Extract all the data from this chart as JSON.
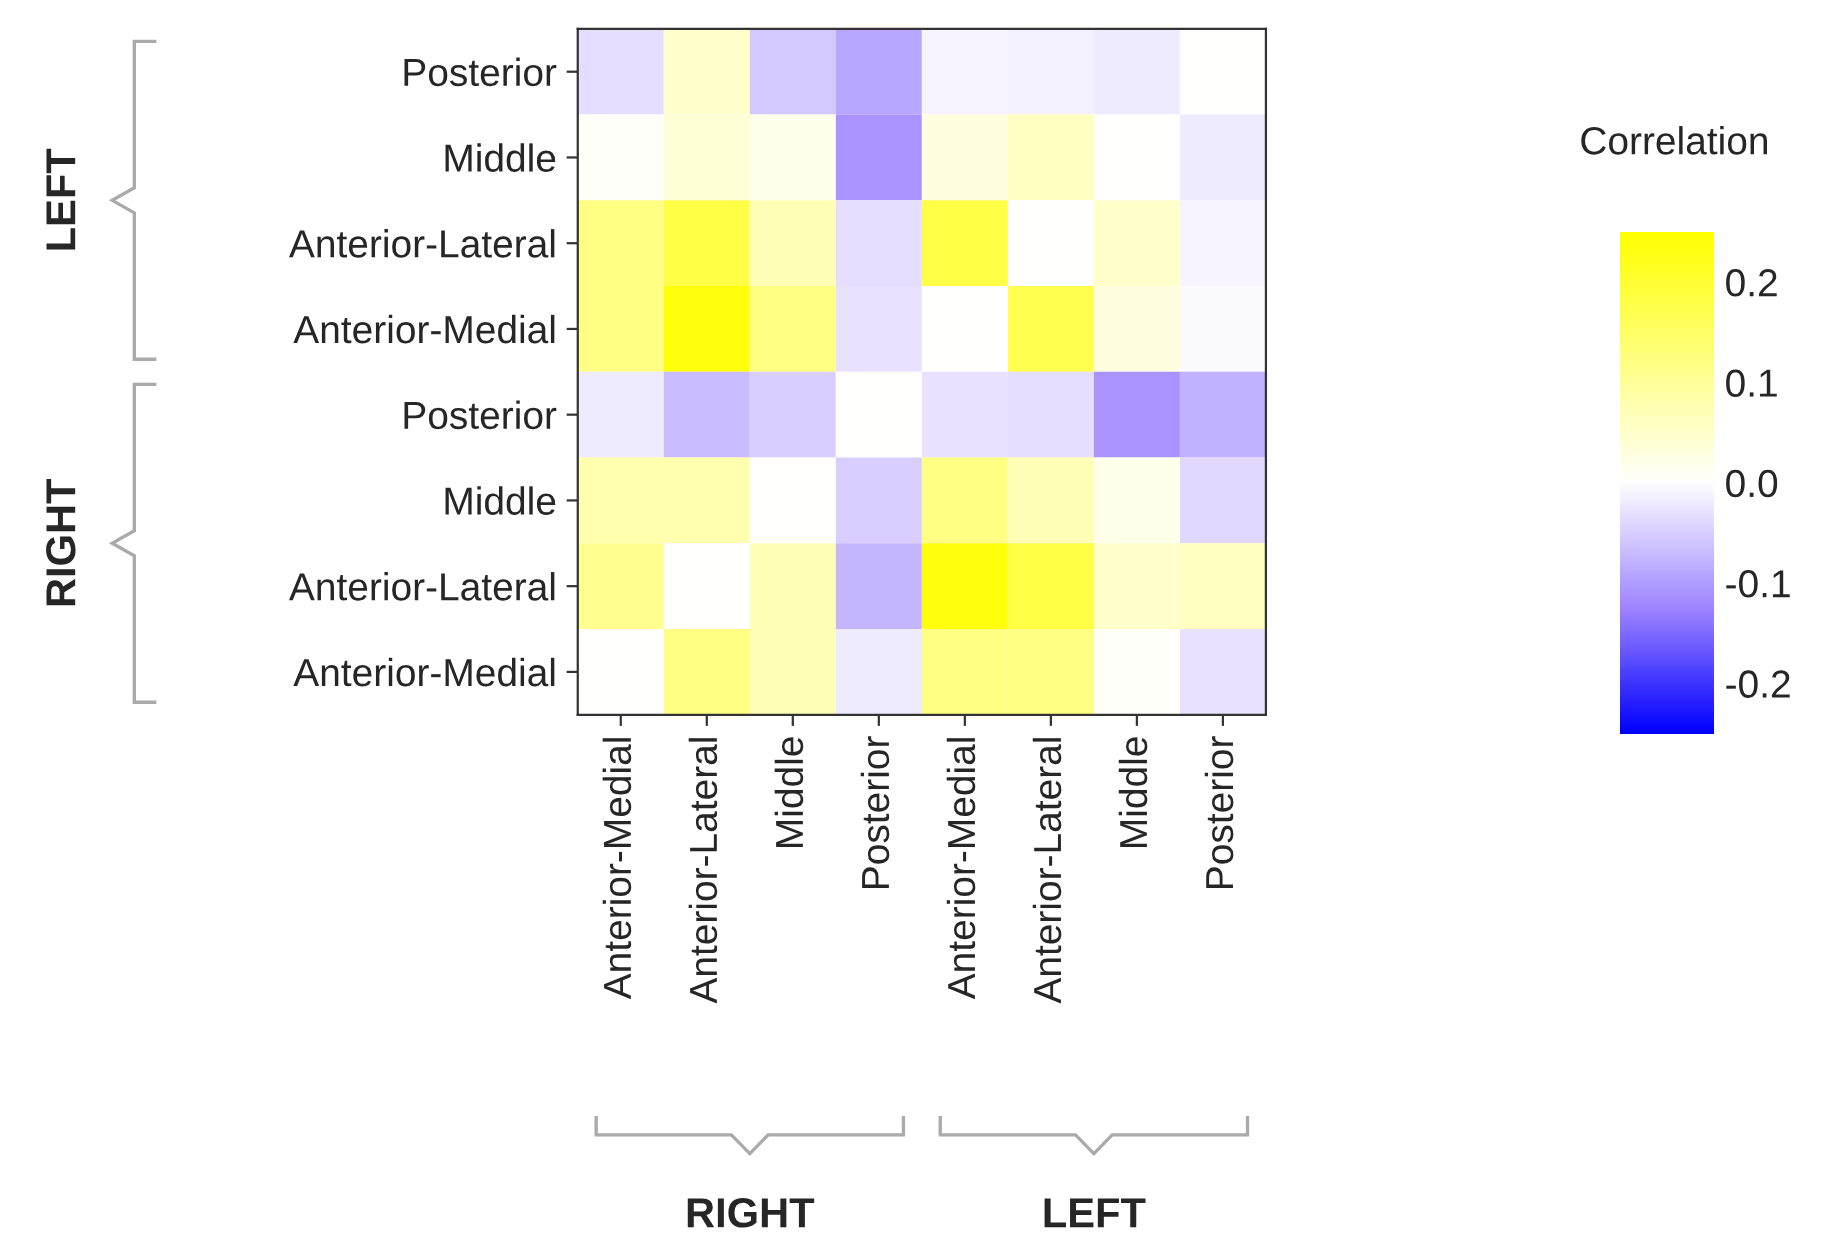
{
  "chart_data": {
    "type": "heatmap",
    "categories": [
      "Anterior-Medial",
      "Anterior-Lateral",
      "Middle",
      "Posterior",
      "Anterior-Medial",
      "Anterior-Lateral",
      "Middle",
      "Posterior"
    ],
    "y_categories": [
      "Posterior",
      "Middle",
      "Anterior-Lateral",
      "Anterior-Medial",
      "Posterior",
      "Middle",
      "Anterior-Lateral",
      "Anterior-Medial"
    ],
    "cells": [
      [
        -0.035,
        0.05,
        -0.055,
        -0.09,
        -0.01,
        -0.015,
        -0.02,
        0.0
      ],
      [
        0.005,
        0.04,
        0.02,
        -0.11,
        0.03,
        0.06,
        0.0,
        -0.02
      ],
      [
        0.12,
        0.18,
        0.07,
        -0.035,
        0.18,
        0.0,
        0.05,
        -0.01
      ],
      [
        0.12,
        0.24,
        0.12,
        -0.03,
        0.0,
        0.17,
        0.03,
        -0.005
      ],
      [
        -0.02,
        -0.07,
        -0.05,
        0.0,
        -0.03,
        -0.035,
        -0.11,
        -0.08
      ],
      [
        0.08,
        0.08,
        0.0,
        -0.05,
        0.12,
        0.07,
        0.02,
        -0.04
      ],
      [
        0.11,
        0.0,
        0.07,
        -0.075,
        0.24,
        0.18,
        0.05,
        0.06
      ],
      [
        0.0,
        0.12,
        0.07,
        -0.02,
        0.12,
        0.12,
        0.005,
        -0.03
      ]
    ],
    "clim": [
      -0.25,
      0.25
    ],
    "cticks": [
      -0.2,
      -0.1,
      {
        "value": 0,
        "label": "0.0"
      },
      0.1,
      0.2
    ],
    "clabel": "Correlation",
    "annotations": [
      "LEFT",
      "RIGHT",
      "RIGHT",
      "LEFT"
    ]
  }
}
